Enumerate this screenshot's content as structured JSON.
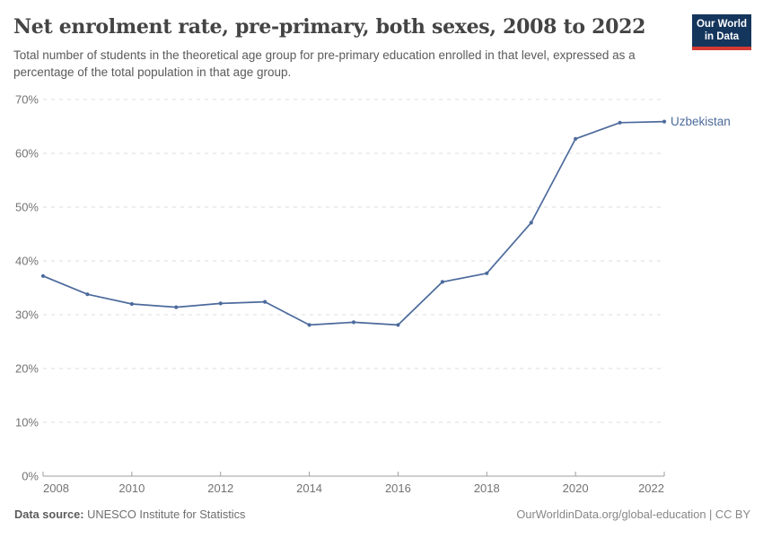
{
  "header": {
    "title": "Net enrolment rate, pre-primary, both sexes, 2008 to 2022",
    "subtitle": "Total number of students in the theoretical age group for pre-primary education enrolled in that level, expressed as a percentage of the total population in that age group."
  },
  "logo": {
    "line1": "Our World",
    "line2": "in Data",
    "bg_color": "#14355c",
    "accent_color": "#d63a34"
  },
  "chart_data": {
    "type": "line",
    "title": "Net enrolment rate, pre-primary, both sexes, 2008 to 2022",
    "x": [
      2008,
      2009,
      2010,
      2011,
      2012,
      2013,
      2014,
      2015,
      2016,
      2017,
      2018,
      2019,
      2020,
      2021,
      2022
    ],
    "series": [
      {
        "name": "Uzbekistan",
        "color": "#4C6A9C",
        "values": [
          37.2,
          33.8,
          32.0,
          31.4,
          32.1,
          32.4,
          28.1,
          28.6,
          28.1,
          36.1,
          37.7,
          47.1,
          62.7,
          65.7,
          65.9
        ]
      }
    ],
    "xlabel": "",
    "ylabel": "",
    "xlim": [
      2008,
      2022
    ],
    "ylim": [
      0,
      70
    ],
    "xticks": [
      2008,
      2010,
      2012,
      2014,
      2016,
      2018,
      2020,
      2022
    ],
    "yticks": [
      0,
      10,
      20,
      30,
      40,
      50,
      60,
      70
    ],
    "ytick_suffix": "%",
    "grid": "horizontal-dashed",
    "gridline_color": "#dedede",
    "axis_color": "#9e9e9e",
    "tick_label_color": "#737373",
    "legend_position": "end-of-line"
  },
  "footer": {
    "source_label": "Data source:",
    "source_value": " UNESCO Institute for Statistics",
    "credit": "OurWorldinData.org/global-education | CC BY"
  }
}
